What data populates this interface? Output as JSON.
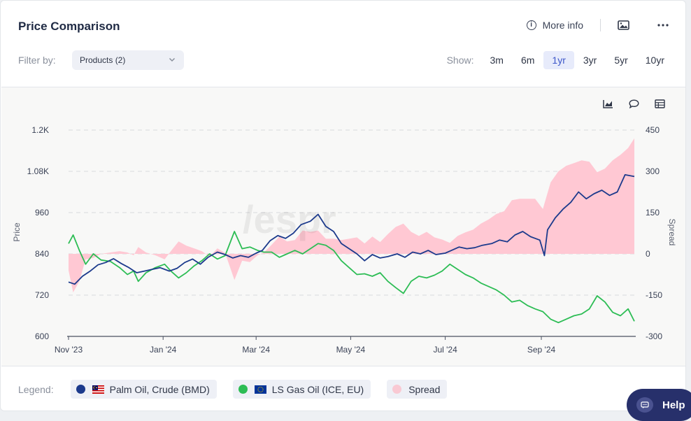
{
  "header": {
    "title": "Price Comparison",
    "more_info": "More info"
  },
  "filter": {
    "label": "Filter by:",
    "value": "Products (2)"
  },
  "range": {
    "label": "Show:",
    "options": [
      "3m",
      "6m",
      "1yr",
      "3yr",
      "5yr",
      "10yr"
    ],
    "selected": "1yr"
  },
  "chart_tools": {
    "icons": [
      "area-chart-icon",
      "comment-icon",
      "table-icon"
    ]
  },
  "legend": {
    "label": "Legend:",
    "items": [
      {
        "label": "Palm Oil, Crude (BMD)",
        "color": "#1c3a8c"
      },
      {
        "label": "LS Gas Oil (ICE, EU)",
        "color": "#2dbd55"
      },
      {
        "label": "Spread",
        "color": "#f9c9d3"
      }
    ]
  },
  "help": {
    "label": "Help"
  },
  "colors": {
    "palm": "#1c3a8c",
    "gasoil": "#2dbd55",
    "spread": "#ffc8d3",
    "active_range": "#3d57c9"
  },
  "chart_data": {
    "type": "line",
    "ylabel": "Price",
    "y2label": "Spread",
    "ylim": [
      600,
      1200
    ],
    "y2lim": [
      -300,
      450
    ],
    "yticks": [
      "1.2K",
      "1.08K",
      "960",
      "840",
      "720",
      "600"
    ],
    "y2ticks": [
      "450",
      "300",
      "150",
      "0",
      "-150",
      "-300"
    ],
    "xticks": [
      "Nov '23",
      "Jan '24",
      "Mar '24",
      "May '24",
      "Jul '24",
      "Sep '24"
    ],
    "x_start": "2023-11-01",
    "x_end": "2024-10-31",
    "legend_position": "bottom",
    "series": [
      {
        "name": "Palm Oil, Crude (BMD)",
        "axis": "left",
        "points": [
          [
            "2023-11-01",
            758
          ],
          [
            "2023-11-05",
            752
          ],
          [
            "2023-11-10",
            775
          ],
          [
            "2023-11-15",
            790
          ],
          [
            "2023-11-20",
            808
          ],
          [
            "2023-11-25",
            815
          ],
          [
            "2023-11-30",
            826
          ],
          [
            "2023-12-05",
            812
          ],
          [
            "2023-12-10",
            800
          ],
          [
            "2023-12-15",
            785
          ],
          [
            "2023-12-20",
            790
          ],
          [
            "2023-12-25",
            795
          ],
          [
            "2023-12-30",
            800
          ],
          [
            "2024-01-05",
            790
          ],
          [
            "2024-01-10",
            798
          ],
          [
            "2024-01-15",
            815
          ],
          [
            "2024-01-20",
            825
          ],
          [
            "2024-01-25",
            810
          ],
          [
            "2024-01-30",
            830
          ],
          [
            "2024-02-05",
            845
          ],
          [
            "2024-02-10",
            838
          ],
          [
            "2024-02-15",
            828
          ],
          [
            "2024-02-20",
            835
          ],
          [
            "2024-02-25",
            830
          ],
          [
            "2024-03-01",
            842
          ],
          [
            "2024-03-05",
            850
          ],
          [
            "2024-03-10",
            878
          ],
          [
            "2024-03-15",
            893
          ],
          [
            "2024-03-20",
            885
          ],
          [
            "2024-03-25",
            900
          ],
          [
            "2024-03-30",
            925
          ],
          [
            "2024-04-05",
            935
          ],
          [
            "2024-04-10",
            955
          ],
          [
            "2024-04-15",
            920
          ],
          [
            "2024-04-20",
            905
          ],
          [
            "2024-04-25",
            870
          ],
          [
            "2024-04-30",
            855
          ],
          [
            "2024-05-05",
            840
          ],
          [
            "2024-05-10",
            820
          ],
          [
            "2024-05-15",
            838
          ],
          [
            "2024-05-20",
            828
          ],
          [
            "2024-05-25",
            832
          ],
          [
            "2024-05-31",
            840
          ],
          [
            "2024-06-05",
            830
          ],
          [
            "2024-06-10",
            845
          ],
          [
            "2024-06-15",
            840
          ],
          [
            "2024-06-20",
            850
          ],
          [
            "2024-06-25",
            838
          ],
          [
            "2024-07-01",
            842
          ],
          [
            "2024-07-05",
            850
          ],
          [
            "2024-07-10",
            860
          ],
          [
            "2024-07-15",
            855
          ],
          [
            "2024-07-20",
            858
          ],
          [
            "2024-07-25",
            865
          ],
          [
            "2024-07-31",
            870
          ],
          [
            "2024-08-05",
            880
          ],
          [
            "2024-08-10",
            875
          ],
          [
            "2024-08-15",
            895
          ],
          [
            "2024-08-20",
            905
          ],
          [
            "2024-08-25",
            890
          ],
          [
            "2024-08-31",
            880
          ],
          [
            "2024-09-03",
            835
          ],
          [
            "2024-09-05",
            910
          ],
          [
            "2024-09-10",
            945
          ],
          [
            "2024-09-15",
            970
          ],
          [
            "2024-09-20",
            990
          ],
          [
            "2024-09-25",
            1020
          ],
          [
            "2024-09-30",
            1000
          ],
          [
            "2024-10-05",
            1015
          ],
          [
            "2024-10-10",
            1025
          ],
          [
            "2024-10-15",
            1010
          ],
          [
            "2024-10-20",
            1020
          ],
          [
            "2024-10-25",
            1070
          ],
          [
            "2024-10-31",
            1065
          ]
        ]
      },
      {
        "name": "LS Gas Oil (ICE, EU)",
        "axis": "left",
        "points": [
          [
            "2023-11-01",
            870
          ],
          [
            "2023-11-04",
            895
          ],
          [
            "2023-11-08",
            850
          ],
          [
            "2023-11-12",
            810
          ],
          [
            "2023-11-17",
            840
          ],
          [
            "2023-11-22",
            822
          ],
          [
            "2023-11-28",
            818
          ],
          [
            "2023-12-04",
            800
          ],
          [
            "2023-12-09",
            780
          ],
          [
            "2023-12-13",
            790
          ],
          [
            "2023-12-16",
            760
          ],
          [
            "2023-12-21",
            785
          ],
          [
            "2023-12-27",
            800
          ],
          [
            "2024-01-02",
            810
          ],
          [
            "2024-01-06",
            790
          ],
          [
            "2024-01-11",
            770
          ],
          [
            "2024-01-16",
            785
          ],
          [
            "2024-01-21",
            805
          ],
          [
            "2024-01-26",
            820
          ],
          [
            "2024-01-31",
            840
          ],
          [
            "2024-02-05",
            825
          ],
          [
            "2024-02-10",
            835
          ],
          [
            "2024-02-16",
            905
          ],
          [
            "2024-02-21",
            855
          ],
          [
            "2024-02-26",
            860
          ],
          [
            "2024-03-02",
            850
          ],
          [
            "2024-03-06",
            845
          ],
          [
            "2024-03-11",
            845
          ],
          [
            "2024-03-16",
            830
          ],
          [
            "2024-03-21",
            840
          ],
          [
            "2024-03-26",
            850
          ],
          [
            "2024-03-31",
            840
          ],
          [
            "2024-04-05",
            855
          ],
          [
            "2024-04-10",
            870
          ],
          [
            "2024-04-15",
            865
          ],
          [
            "2024-04-20",
            850
          ],
          [
            "2024-04-25",
            820
          ],
          [
            "2024-04-30",
            800
          ],
          [
            "2024-05-05",
            780
          ],
          [
            "2024-05-10",
            782
          ],
          [
            "2024-05-15",
            775
          ],
          [
            "2024-05-20",
            785
          ],
          [
            "2024-05-25",
            760
          ],
          [
            "2024-05-30",
            742
          ],
          [
            "2024-06-04",
            725
          ],
          [
            "2024-06-09",
            760
          ],
          [
            "2024-06-14",
            775
          ],
          [
            "2024-06-19",
            770
          ],
          [
            "2024-06-24",
            778
          ],
          [
            "2024-06-29",
            790
          ],
          [
            "2024-07-04",
            810
          ],
          [
            "2024-07-09",
            795
          ],
          [
            "2024-07-14",
            780
          ],
          [
            "2024-07-19",
            770
          ],
          [
            "2024-07-24",
            755
          ],
          [
            "2024-07-29",
            745
          ],
          [
            "2024-08-03",
            735
          ],
          [
            "2024-08-08",
            720
          ],
          [
            "2024-08-13",
            700
          ],
          [
            "2024-08-18",
            705
          ],
          [
            "2024-08-23",
            690
          ],
          [
            "2024-08-28",
            680
          ],
          [
            "2024-09-02",
            672
          ],
          [
            "2024-09-07",
            650
          ],
          [
            "2024-09-12",
            640
          ],
          [
            "2024-09-17",
            650
          ],
          [
            "2024-09-22",
            660
          ],
          [
            "2024-09-27",
            665
          ],
          [
            "2024-10-02",
            680
          ],
          [
            "2024-10-07",
            718
          ],
          [
            "2024-10-12",
            700
          ],
          [
            "2024-10-17",
            670
          ],
          [
            "2024-10-22",
            660
          ],
          [
            "2024-10-27",
            680
          ],
          [
            "2024-10-31",
            644
          ]
        ]
      },
      {
        "name": "Spread",
        "axis": "right",
        "type": "area",
        "points": [
          [
            "2023-11-01",
            -60
          ],
          [
            "2023-11-04",
            -140
          ],
          [
            "2023-11-08",
            -100
          ],
          [
            "2023-11-12",
            -20
          ],
          [
            "2023-11-17",
            -15
          ],
          [
            "2023-11-22",
            0
          ],
          [
            "2023-11-28",
            5
          ],
          [
            "2023-12-04",
            10
          ],
          [
            "2023-12-09",
            5
          ],
          [
            "2023-12-13",
            -5
          ],
          [
            "2023-12-16",
            25
          ],
          [
            "2023-12-21",
            5
          ],
          [
            "2023-12-27",
            -5
          ],
          [
            "2024-01-02",
            -20
          ],
          [
            "2024-01-06",
            10
          ],
          [
            "2024-01-11",
            45
          ],
          [
            "2024-01-16",
            30
          ],
          [
            "2024-01-21",
            20
          ],
          [
            "2024-01-26",
            10
          ],
          [
            "2024-01-31",
            -10
          ],
          [
            "2024-02-05",
            20
          ],
          [
            "2024-02-10",
            3
          ],
          [
            "2024-02-16",
            -95
          ],
          [
            "2024-02-21",
            -25
          ],
          [
            "2024-02-26",
            -30
          ],
          [
            "2024-03-02",
            -5
          ],
          [
            "2024-03-06",
            5
          ],
          [
            "2024-03-11",
            33
          ],
          [
            "2024-03-16",
            63
          ],
          [
            "2024-03-21",
            45
          ],
          [
            "2024-03-26",
            50
          ],
          [
            "2024-03-31",
            85
          ],
          [
            "2024-04-05",
            80
          ],
          [
            "2024-04-10",
            85
          ],
          [
            "2024-04-15",
            55
          ],
          [
            "2024-04-20",
            55
          ],
          [
            "2024-04-25",
            50
          ],
          [
            "2024-04-30",
            55
          ],
          [
            "2024-05-05",
            60
          ],
          [
            "2024-05-10",
            38
          ],
          [
            "2024-05-15",
            63
          ],
          [
            "2024-05-20",
            43
          ],
          [
            "2024-05-25",
            72
          ],
          [
            "2024-05-30",
            98
          ],
          [
            "2024-06-04",
            110
          ],
          [
            "2024-06-09",
            80
          ],
          [
            "2024-06-14",
            65
          ],
          [
            "2024-06-19",
            80
          ],
          [
            "2024-06-24",
            60
          ],
          [
            "2024-06-29",
            52
          ],
          [
            "2024-07-04",
            40
          ],
          [
            "2024-07-09",
            65
          ],
          [
            "2024-07-14",
            78
          ],
          [
            "2024-07-19",
            88
          ],
          [
            "2024-07-24",
            110
          ],
          [
            "2024-07-29",
            125
          ],
          [
            "2024-08-03",
            145
          ],
          [
            "2024-08-08",
            155
          ],
          [
            "2024-08-13",
            195
          ],
          [
            "2024-08-18",
            200
          ],
          [
            "2024-08-23",
            200
          ],
          [
            "2024-08-28",
            200
          ],
          [
            "2024-09-02",
            163
          ],
          [
            "2024-09-07",
            260
          ],
          [
            "2024-09-12",
            300
          ],
          [
            "2024-09-17",
            320
          ],
          [
            "2024-09-22",
            330
          ],
          [
            "2024-09-27",
            340
          ],
          [
            "2024-10-02",
            335
          ],
          [
            "2024-10-07",
            297
          ],
          [
            "2024-10-12",
            310
          ],
          [
            "2024-10-17",
            340
          ],
          [
            "2024-10-22",
            360
          ],
          [
            "2024-10-27",
            385
          ],
          [
            "2024-10-31",
            420
          ]
        ]
      }
    ]
  }
}
